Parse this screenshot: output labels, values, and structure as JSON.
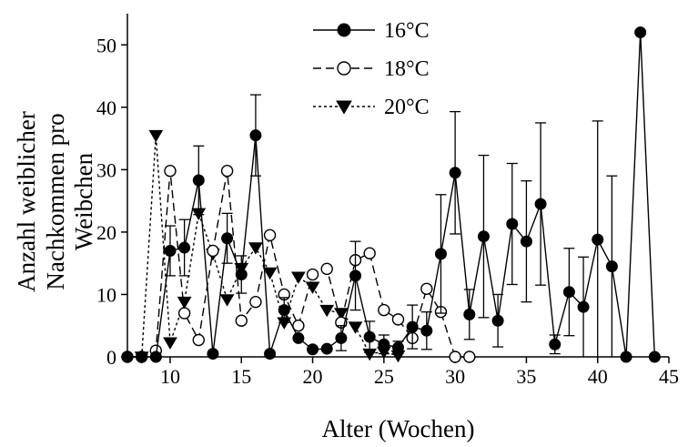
{
  "chart_data": {
    "type": "line",
    "xlabel": "Alter (Wochen)",
    "ylabel_lines": [
      "Anzahl weiblicher",
      "Nachkommen pro",
      "Weibchen"
    ],
    "xlim": [
      7,
      45
    ],
    "ylim": [
      0,
      55
    ],
    "xticks": [
      10,
      15,
      20,
      25,
      30,
      35,
      40,
      45
    ],
    "yticks": [
      0,
      10,
      20,
      30,
      40,
      50
    ],
    "xtick_labels": [
      "10",
      "15",
      "20",
      "25",
      "30",
      "35",
      "40",
      "45"
    ],
    "ytick_labels": [
      "0",
      "10",
      "20",
      "30",
      "40",
      "50"
    ],
    "legend_position": "top-center",
    "series": [
      {
        "name": "16°C",
        "marker": "filled-circle",
        "line": "solid",
        "color": "#000000",
        "points": [
          {
            "x": 7,
            "y": 0
          },
          {
            "x": 8,
            "y": 0
          },
          {
            "x": 9,
            "y": 0
          },
          {
            "x": 10,
            "y": 17,
            "err": 4
          },
          {
            "x": 11,
            "y": 17.5,
            "err": 4.5
          },
          {
            "x": 12,
            "y": 28.3,
            "err": 5.5
          },
          {
            "x": 13,
            "y": 0.5
          },
          {
            "x": 14,
            "y": 19,
            "err": 4
          },
          {
            "x": 15,
            "y": 13.2,
            "err": 3
          },
          {
            "x": 16,
            "y": 35.5,
            "err": 6.5
          },
          {
            "x": 17,
            "y": 0.5
          },
          {
            "x": 18,
            "y": 7.5,
            "err": 2
          },
          {
            "x": 19,
            "y": 3
          },
          {
            "x": 20,
            "y": 1.2
          },
          {
            "x": 21,
            "y": 1.3
          },
          {
            "x": 22,
            "y": 3,
            "err": 2
          },
          {
            "x": 23,
            "y": 13,
            "err": 5.5
          },
          {
            "x": 24,
            "y": 3.2,
            "err": 2.5
          },
          {
            "x": 25,
            "y": 2,
            "err": 1.5
          },
          {
            "x": 26,
            "y": 1.5,
            "err": 1
          },
          {
            "x": 27,
            "y": 4.8,
            "err": 3.5
          },
          {
            "x": 28,
            "y": 4.2,
            "err": 3
          },
          {
            "x": 29,
            "y": 16.5,
            "err": 9.5
          },
          {
            "x": 30,
            "y": 29.5,
            "err": 9.8
          },
          {
            "x": 31,
            "y": 6.8,
            "err": 4
          },
          {
            "x": 32,
            "y": 19.3,
            "err": 13
          },
          {
            "x": 33,
            "y": 5.8,
            "err": 4.2
          },
          {
            "x": 34,
            "y": 21.3,
            "err": 9.7
          },
          {
            "x": 35,
            "y": 18.5,
            "err": 9.7
          },
          {
            "x": 36,
            "y": 24.5,
            "err": 13
          },
          {
            "x": 37,
            "y": 2,
            "err": 1.5
          },
          {
            "x": 38,
            "y": 10.4,
            "err": 7
          },
          {
            "x": 39,
            "y": 8,
            "err": 8
          },
          {
            "x": 40,
            "y": 18.8,
            "err": 19
          },
          {
            "x": 41,
            "y": 14.5,
            "err": 14.5
          },
          {
            "x": 42,
            "y": 0
          },
          {
            "x": 43,
            "y": 52
          },
          {
            "x": 44,
            "y": 0
          }
        ]
      },
      {
        "name": "18°C",
        "marker": "open-circle",
        "line": "dashed",
        "color": "#000000",
        "points": [
          {
            "x": 7,
            "y": 0
          },
          {
            "x": 8,
            "y": 0
          },
          {
            "x": 9,
            "y": 1
          },
          {
            "x": 10,
            "y": 29.8
          },
          {
            "x": 11,
            "y": 7
          },
          {
            "x": 12,
            "y": 2.7
          },
          {
            "x": 13,
            "y": 17
          },
          {
            "x": 14,
            "y": 29.8
          },
          {
            "x": 15,
            "y": 5.8
          },
          {
            "x": 16,
            "y": 8.8
          },
          {
            "x": 17,
            "y": 19.5
          },
          {
            "x": 18,
            "y": 10
          },
          {
            "x": 19,
            "y": 5
          },
          {
            "x": 20,
            "y": 13.2
          },
          {
            "x": 21,
            "y": 14.1
          },
          {
            "x": 22,
            "y": 5.5
          },
          {
            "x": 23,
            "y": 15.5
          },
          {
            "x": 24,
            "y": 16.6
          },
          {
            "x": 25,
            "y": 7.5
          },
          {
            "x": 26,
            "y": 6
          },
          {
            "x": 27,
            "y": 3
          },
          {
            "x": 28,
            "y": 10.9
          },
          {
            "x": 29,
            "y": 7.2
          },
          {
            "x": 30,
            "y": 0
          },
          {
            "x": 31,
            "y": 0
          }
        ]
      },
      {
        "name": "20°C",
        "marker": "filled-triangle-down",
        "line": "dotted",
        "color": "#000000",
        "points": [
          {
            "x": 8,
            "y": 0
          },
          {
            "x": 9,
            "y": 35.5
          },
          {
            "x": 10,
            "y": 2.3
          },
          {
            "x": 11,
            "y": 8.8
          },
          {
            "x": 12,
            "y": 23
          },
          {
            "x": 13,
            "y": 16.5
          },
          {
            "x": 14,
            "y": 9.2
          },
          {
            "x": 15,
            "y": 14.2
          },
          {
            "x": 16,
            "y": 17.5
          },
          {
            "x": 17,
            "y": 13.5
          },
          {
            "x": 18,
            "y": 5.5
          },
          {
            "x": 19,
            "y": 12.8
          },
          {
            "x": 20,
            "y": 11.2
          },
          {
            "x": 21,
            "y": 7.5
          },
          {
            "x": 22,
            "y": 7
          },
          {
            "x": 23,
            "y": 4.8
          },
          {
            "x": 24,
            "y": 0.5
          },
          {
            "x": 25,
            "y": 0.8
          },
          {
            "x": 26,
            "y": 0.2
          }
        ]
      }
    ]
  }
}
